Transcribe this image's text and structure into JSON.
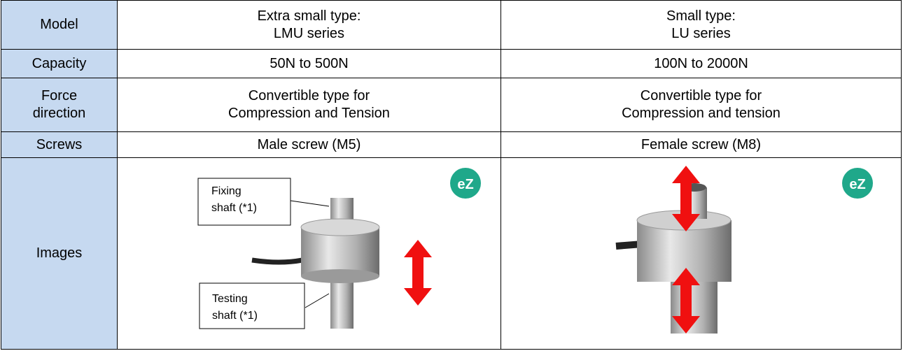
{
  "table": {
    "rows": [
      [
        [
          "Model"
        ],
        [
          "Extra small type:",
          "LMU series"
        ],
        [
          "Small type:",
          "LU series"
        ]
      ],
      [
        [
          "Capacity"
        ],
        [
          "50N to 500N"
        ],
        [
          "100N to 2000N"
        ]
      ],
      [
        [
          "Force",
          "direction"
        ],
        [
          "Convertible type for",
          "Compression and Tension"
        ],
        [
          "Convertible type for",
          "Compression and tension"
        ]
      ],
      [
        [
          "Screws"
        ],
        [
          "Male screw (M5)"
        ],
        [
          "Female screw (M8)"
        ]
      ],
      [
        [
          "Images"
        ]
      ]
    ]
  },
  "images": {
    "lmu": {
      "callouts": [
        [
          "Fixing",
          "shaft (*1)"
        ],
        [
          "Testing",
          "shaft (*1)"
        ]
      ],
      "logo": "eZ"
    },
    "lu": {
      "logo": "eZ"
    }
  }
}
